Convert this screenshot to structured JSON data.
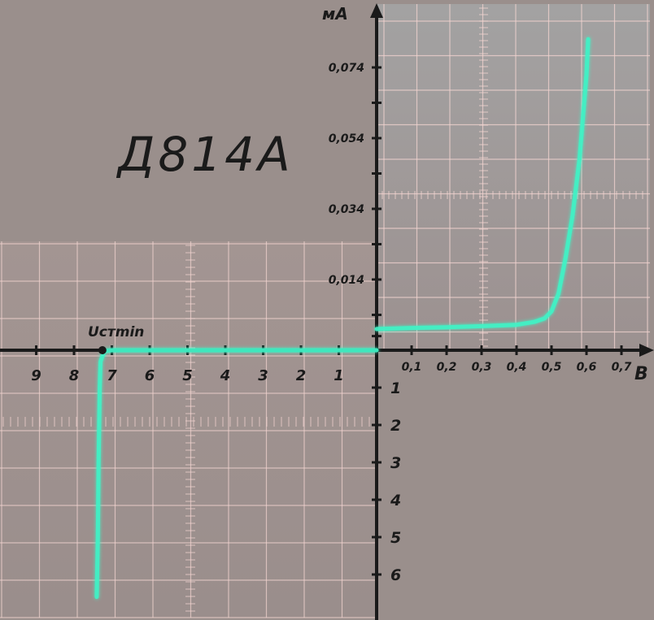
{
  "chart_data": {
    "type": "line",
    "title": "Д814А",
    "x_units_label": "В",
    "y_units_label": "мА",
    "annotation": "Uстmin",
    "forward_x_ticks": [
      "0,1",
      "0,2",
      "0,3",
      "0,4",
      "0,5",
      "0,6",
      "0,7"
    ],
    "reverse_x_ticks": [
      "1",
      "2",
      "3",
      "4",
      "5",
      "6",
      "7",
      "8",
      "9"
    ],
    "forward_y_ticks": [
      "0,014",
      "0,034",
      "0,054",
      "0,074"
    ],
    "reverse_y_ticks": [
      "1",
      "2",
      "3",
      "4",
      "5",
      "6"
    ],
    "forward_branch": {
      "x_unit": "В",
      "y_unit": "мА",
      "points": [
        [
          0.0,
          0.0
        ],
        [
          0.1,
          0.0003
        ],
        [
          0.2,
          0.0005
        ],
        [
          0.3,
          0.0008
        ],
        [
          0.4,
          0.0012
        ],
        [
          0.45,
          0.002
        ],
        [
          0.48,
          0.003
        ],
        [
          0.5,
          0.005
        ],
        [
          0.52,
          0.01
        ],
        [
          0.54,
          0.02
        ],
        [
          0.56,
          0.032
        ],
        [
          0.58,
          0.048
        ],
        [
          0.59,
          0.06
        ],
        [
          0.6,
          0.072
        ],
        [
          0.605,
          0.082
        ]
      ]
    },
    "reverse_branch": {
      "x_unit": "В",
      "y_unit": "мА",
      "points": [
        [
          0.0,
          0.0
        ],
        [
          4.0,
          0.0
        ],
        [
          7.0,
          0.0
        ],
        [
          7.2,
          -0.02
        ],
        [
          7.3,
          -0.3
        ],
        [
          7.32,
          -1.0
        ],
        [
          7.35,
          -3.0
        ],
        [
          7.37,
          -5.0
        ],
        [
          7.4,
          -6.6
        ]
      ]
    },
    "grid": true,
    "colors": {
      "trace": "#3ff3c6",
      "axes": "#1a1a1a",
      "grid": "#f2d4d0",
      "background": "#9a8f8c"
    }
  }
}
